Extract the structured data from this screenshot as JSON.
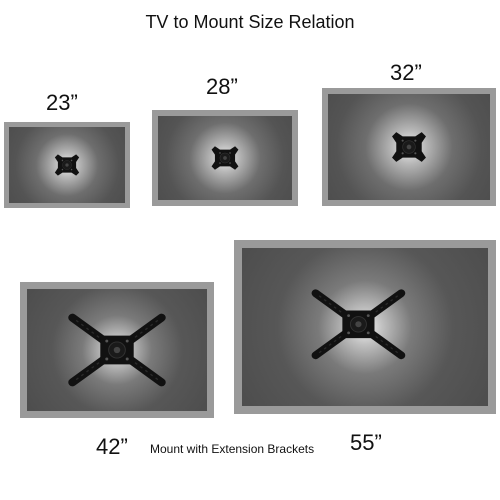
{
  "title": "TV to Mount Size Relation",
  "caption": "Mount with Extension Brackets",
  "tvs": [
    {
      "label": "23”"
    },
    {
      "label": "28”"
    },
    {
      "label": "32”"
    },
    {
      "label": "42”"
    },
    {
      "label": "55”"
    }
  ],
  "colors": {
    "bezel": "#9a9a9a",
    "screen": "#545454",
    "mount": "#111111"
  },
  "icons": [
    "tv-wall-mount-icon",
    "extended-mount-icon"
  ]
}
